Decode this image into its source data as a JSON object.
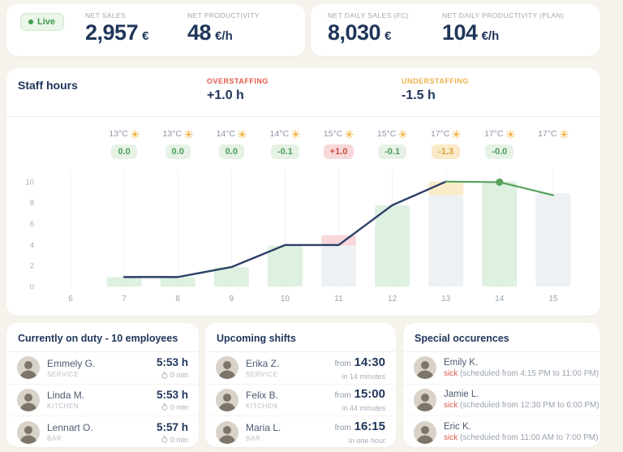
{
  "topbar": {
    "live_label": "Live",
    "cards": [
      {
        "metrics": [
          {
            "label": "NET SALES",
            "value": "2,957",
            "unit": "€"
          },
          {
            "label": "NET PRODUCTIVITY",
            "value": "48",
            "unit": "€/h"
          }
        ]
      },
      {
        "metrics": [
          {
            "label": "NET DAILY SALES (FC)",
            "value": "8,030",
            "unit": "€"
          },
          {
            "label": "NET DAILY PRODUCTIVITY (PLAN)",
            "value": "104",
            "unit": "€/h"
          }
        ]
      }
    ]
  },
  "staff_hours": {
    "title": "Staff hours",
    "overstaffing_label": "OVERSTAFFING",
    "overstaffing_value": "+1.0 h",
    "understaffing_label": "UNDERSTAFFING",
    "understaffing_value": "-1.5 h"
  },
  "colors": {
    "navy": "#20365a",
    "line_planned": "#2c4066",
    "line_forecast": "#57a15b",
    "bar_green": "#def0df",
    "bar_gray": "#eef1f4",
    "bar_over_red": "#f8d8da",
    "bar_under_yellow": "#f9ecca",
    "badge_green": "#4a9e5c",
    "badge_red": "#c94f44",
    "badge_amber": "#d9a23f",
    "live_green": "#3f9d4e",
    "sun_amber": "#f2b13e",
    "background": "#f6f3ed"
  },
  "chart_data": {
    "type": "bar+line",
    "hours": [
      6,
      7,
      8,
      9,
      10,
      11,
      12,
      13,
      14,
      15
    ],
    "ylim": [
      0,
      10
    ],
    "yticks": [
      0,
      2,
      4,
      6,
      8,
      10
    ],
    "grid": "vertical",
    "columns": [
      {
        "hour": 7,
        "temp": "13°C",
        "delta": "0.0",
        "delta_status": "ok",
        "bar": 0.9,
        "bar_style": "green"
      },
      {
        "hour": 8,
        "temp": "13°C",
        "delta": "0.0",
        "delta_status": "ok",
        "bar": 0.9,
        "bar_style": "green"
      },
      {
        "hour": 9,
        "temp": "14°C",
        "delta": "0.0",
        "delta_status": "ok",
        "bar": 1.85,
        "bar_style": "green"
      },
      {
        "hour": 10,
        "temp": "14°C",
        "delta": "-0.1",
        "delta_status": "ok",
        "bar": 3.9,
        "bar_style": "green"
      },
      {
        "hour": 11,
        "temp": "15°C",
        "delta": "+1.0",
        "delta_status": "over",
        "bar": 3.9,
        "bar_style": "gray",
        "over_extra": 1.0
      },
      {
        "hour": 12,
        "temp": "15°C",
        "delta": "-0.1",
        "delta_status": "ok",
        "bar": 7.75,
        "bar_style": "green"
      },
      {
        "hour": 13,
        "temp": "17°C",
        "delta": "-1.3",
        "delta_status": "under",
        "bar": 8.7,
        "bar_style": "gray",
        "under_extra": 1.3
      },
      {
        "hour": 14,
        "temp": "17°C",
        "delta": "-0.0",
        "delta_status": "ok",
        "bar": 10,
        "bar_style": "green"
      },
      {
        "hour": 15,
        "temp": "17°C",
        "bar": 8.9,
        "bar_style": "gray"
      }
    ],
    "planned_line": [
      [
        7,
        0.9
      ],
      [
        8,
        0.9
      ],
      [
        9,
        1.85
      ],
      [
        10,
        3.95
      ],
      [
        11,
        3.95
      ],
      [
        12,
        7.75
      ],
      [
        13,
        10
      ]
    ],
    "forecast_line": [
      [
        13,
        10
      ],
      [
        14,
        9.95
      ],
      [
        15,
        8.7
      ]
    ],
    "forecast_marker": [
      14,
      9.95
    ]
  },
  "panels": [
    {
      "type": "duty",
      "title": "Currently on duty - 10 employees",
      "rows": [
        {
          "name": "Emmely G.",
          "role": "SERVICE",
          "hours": "5:53 h",
          "break": "0 min"
        },
        {
          "name": "Linda M.",
          "role": "KITCHEN",
          "hours": "5:53 h",
          "break": "0 min"
        },
        {
          "name": "Lennart O.",
          "role": "BAR",
          "hours": "5:57 h",
          "break": "0 min"
        }
      ]
    },
    {
      "type": "shifts",
      "title": "Upcoming shifts",
      "rows": [
        {
          "name": "Erika Z.",
          "role": "SERVICE",
          "from_label": "from",
          "time": "14:30",
          "eta": "in 14 minutes"
        },
        {
          "name": "Felix B.",
          "role": "KITCHEN",
          "from_label": "from",
          "time": "15:00",
          "eta": "in 44 minutes"
        },
        {
          "name": "Maria L.",
          "role": "BAR",
          "from_label": "from",
          "time": "16:15",
          "eta": "in one hour"
        }
      ]
    },
    {
      "type": "occurrences",
      "title": "Special occurences",
      "rows": [
        {
          "name": "Emily K.",
          "status": "sick",
          "detail": "(scheduled from 4:15 PM to 11:00 PM)"
        },
        {
          "name": "Jamie L.",
          "status": "sick",
          "detail": "(scheduled from 12:30 PM to 6:00 PM)"
        },
        {
          "name": "Eric K.",
          "status": "sick",
          "detail": "(scheduled from 11:00 AM to 7:00 PM)"
        }
      ]
    }
  ]
}
